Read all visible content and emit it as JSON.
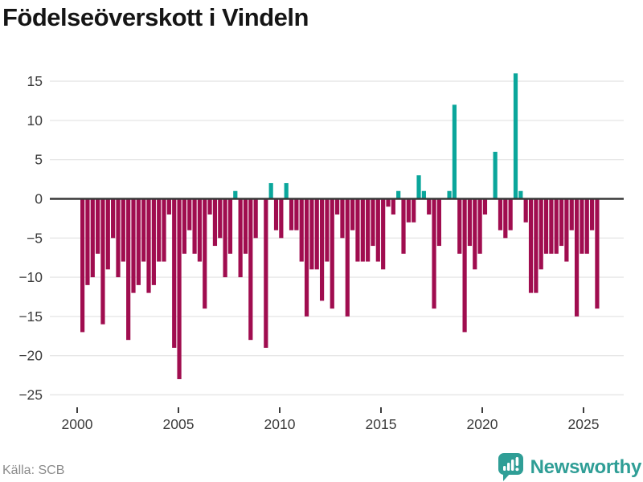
{
  "title": "Födelseöverskott i Vindeln",
  "footer": {
    "source": "Källa: SCB",
    "brand": "Newsworthy"
  },
  "colors": {
    "negative_bar": "#a00d4f",
    "positive_bar": "#0aa69b",
    "gridline": "#e7e7e7",
    "zero_axis": "#383838",
    "tick_text": "#3c3c3c",
    "muted_text": "#8b8b8b",
    "brand_teal": "#2f9e96",
    "title_text": "#151515"
  },
  "chart_data": {
    "type": "bar",
    "title": "Födelseöverskott i Vindeln",
    "frequency": "quarterly",
    "x_start": {
      "year": 2000,
      "quarter": 1
    },
    "x_end": {
      "year": 2025,
      "quarter": 2
    },
    "values": [
      -17,
      -11,
      -10,
      -7,
      -16,
      -9,
      -5,
      -10,
      -8,
      -18,
      -12,
      -11,
      -8,
      -12,
      -11,
      -8,
      -8,
      -2,
      -19,
      -23,
      -7,
      -4,
      -7,
      -8,
      -14,
      -2,
      -6,
      -5,
      -10,
      -7,
      1,
      -10,
      -7,
      -18,
      -5,
      0,
      -19,
      2,
      -4,
      -5,
      2,
      -4,
      -4,
      -8,
      -15,
      -9,
      -9,
      -13,
      -8,
      -14,
      -2,
      -5,
      -15,
      -4,
      -8,
      -8,
      -8,
      -6,
      -8,
      -9,
      -1,
      -2,
      1,
      -7,
      -3,
      -3,
      3,
      1,
      -2,
      -14,
      -6,
      0,
      1,
      12,
      -7,
      -17,
      -6,
      -9,
      -7,
      -2,
      0,
      6,
      -4,
      -5,
      -4,
      16,
      1,
      -3,
      -12,
      -12,
      -9,
      -7,
      -7,
      -7,
      -6,
      -8,
      -4,
      -15,
      -7,
      -7,
      -4,
      -14
    ],
    "x_tick_years": [
      2000,
      2005,
      2010,
      2015,
      2020,
      2025
    ],
    "y_ticks": [
      15,
      10,
      5,
      0,
      -5,
      -10,
      -15,
      -20,
      -25
    ],
    "ylim": [
      -25,
      17
    ],
    "grid": true,
    "legend": false
  }
}
